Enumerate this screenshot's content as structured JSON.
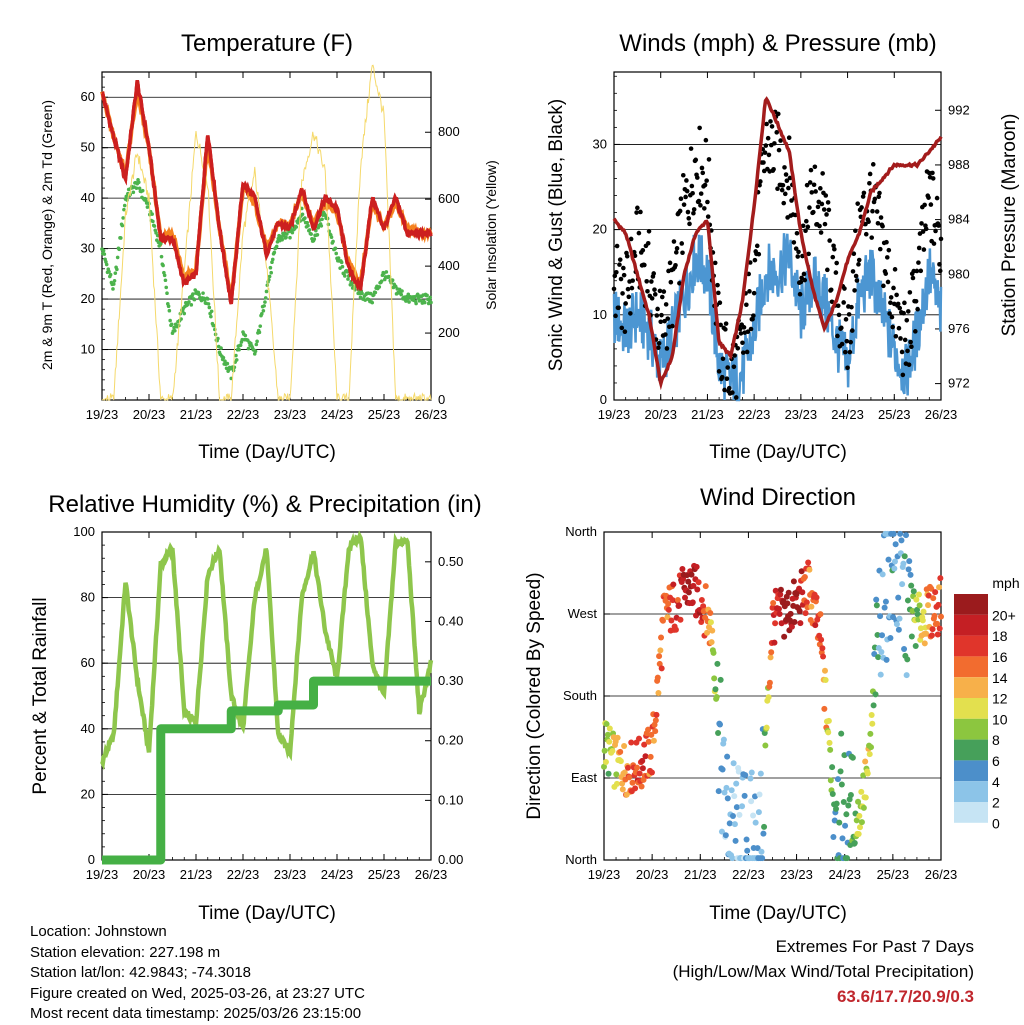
{
  "panels": {
    "temperature": {
      "title": "Temperature (F)",
      "ylabel_left": "2m & 9m T (Red, Orange) & 2m Td (Green)",
      "ylabel_right": "Solar Insolation (Yellow)",
      "xlabel": "Time (Day/UTC)"
    },
    "winds": {
      "title": "Winds (mph) & Pressure (mb)",
      "ylabel_left": "Sonic Wind & Gust (Blue, Black)",
      "ylabel_right": "Station Pressure (Maroon)",
      "xlabel": "Time (Day/UTC)"
    },
    "humidity": {
      "title": "Relative Humidity (%) & Precipitation (in)",
      "ylabel_left": "Percent & Total Rainfall",
      "xlabel": "Time (Day/UTC)"
    },
    "direction": {
      "title": "Wind Direction",
      "ylabel_left": "Direction (Colored By Speed)",
      "xlabel": "Time (Day/UTC)",
      "legend_title": "mph"
    }
  },
  "info": {
    "location": "Location: Johnstown",
    "elevation": "Station elevation: 227.198 m",
    "latlon": "Station lat/lon: 42.9843; -74.3018",
    "created": "Figure created on Wed, 2025-03-26, at 23:27 UTC",
    "recent": "Most recent data timestamp: 2025/03/26 23:15:00"
  },
  "extremes": {
    "heading": "Extremes For Past 7 Days",
    "subheading": "(High/Low/Max Wind/Total Precipitation)",
    "values": "63.6/17.7/20.9/0.3"
  },
  "colors": {
    "temp_2m": "#cc1f1f",
    "temp_9m": "#f5821f",
    "dewpoint": "#4cb34c",
    "insolation": "#f5d96b",
    "wind": "#4c96d2",
    "gust": "#000000",
    "pressure": "#a31c1c",
    "rh": "#8ec64c",
    "precip": "#45b045"
  },
  "chart_data": [
    {
      "type": "line",
      "title": "Temperature (F)",
      "xlabel": "Time (Day/UTC)",
      "ylabel": "2m & 9m T (Red, Orange) & 2m Td (Green)",
      "ylabel_right": "Solar Insolation (Yellow)",
      "x_ticks": [
        "19/23",
        "20/23",
        "21/23",
        "22/23",
        "23/23",
        "24/23",
        "25/23",
        "26/23"
      ],
      "x": [
        0,
        0.25,
        0.5,
        0.75,
        1.0,
        1.25,
        1.5,
        1.75,
        2.0,
        2.25,
        2.5,
        2.75,
        3.0,
        3.25,
        3.5,
        3.75,
        4.0,
        4.25,
        4.5,
        4.75,
        5.0,
        5.25,
        5.5,
        5.75,
        6.0,
        6.25,
        6.5,
        6.75,
        7.0
      ],
      "ylim": [
        0,
        65
      ],
      "ylim_right": [
        0,
        980
      ],
      "yticks": [
        10,
        20,
        30,
        40,
        50,
        60
      ],
      "yticks_right": [
        0,
        200,
        400,
        600,
        800
      ],
      "series": [
        {
          "name": "2m T",
          "color": "#cc1f1f",
          "axis": "left",
          "values": [
            61,
            52,
            44,
            63,
            50,
            32,
            32,
            23,
            25,
            53,
            34,
            19,
            43,
            40,
            29,
            35,
            34,
            42,
            34,
            40,
            38,
            26,
            22,
            40,
            34,
            40,
            33,
            33,
            33
          ]
        },
        {
          "name": "9m T",
          "color": "#f5821f",
          "axis": "left",
          "values": [
            61,
            52,
            45,
            61,
            50,
            32,
            33,
            24,
            26,
            51,
            34,
            20,
            42,
            39,
            30,
            35,
            35,
            41,
            35,
            39,
            37,
            27,
            23,
            39,
            34,
            39,
            34,
            33,
            33
          ]
        },
        {
          "name": "2m Td",
          "color": "#4cb34c",
          "axis": "left",
          "values": [
            30,
            22,
            40,
            43,
            38,
            30,
            13,
            18,
            21,
            20,
            10,
            5,
            13,
            9,
            22,
            32,
            33,
            37,
            32,
            37,
            28,
            24,
            21,
            20,
            25,
            22,
            20,
            20,
            20
          ]
        },
        {
          "name": "Solar Insolation",
          "color": "#f5d96b",
          "axis": "right",
          "values": [
            0,
            0,
            550,
            740,
            600,
            0,
            0,
            380,
            800,
            650,
            0,
            0,
            500,
            680,
            400,
            0,
            0,
            650,
            800,
            680,
            0,
            0,
            700,
            1000,
            850,
            0,
            0,
            0,
            0
          ]
        }
      ]
    },
    {
      "type": "scatter",
      "title": "Winds (mph) & Pressure (mb)",
      "xlabel": "Time (Day/UTC)",
      "ylabel": "Sonic Wind & Gust (Blue, Black)",
      "ylabel_right": "Station Pressure (Maroon)",
      "x_ticks": [
        "19/23",
        "20/23",
        "21/23",
        "22/23",
        "23/23",
        "24/23",
        "25/23",
        "26/23"
      ],
      "x": [
        0,
        0.25,
        0.5,
        0.75,
        1.0,
        1.25,
        1.5,
        1.75,
        2.0,
        2.25,
        2.5,
        2.75,
        3.0,
        3.25,
        3.5,
        3.75,
        4.0,
        4.25,
        4.5,
        4.75,
        5.0,
        5.25,
        5.5,
        5.75,
        6.0,
        6.25,
        6.5,
        6.75,
        7.0
      ],
      "ylim": [
        0,
        38.5
      ],
      "ylim_right": [
        970.8,
        994.8
      ],
      "yticks": [
        0,
        10,
        20,
        30
      ],
      "yticks_right": [
        972,
        976,
        980,
        984,
        988,
        992
      ],
      "series": [
        {
          "name": "Sonic Wind",
          "color": "#4c96d2",
          "axis": "left",
          "values": [
            10,
            8,
            10,
            8,
            4,
            8,
            12,
            17,
            15,
            4,
            2,
            3,
            8,
            15,
            15,
            17,
            10,
            14,
            12,
            7,
            4,
            12,
            15,
            10,
            6,
            3,
            8,
            15,
            10
          ]
        },
        {
          "name": "Gust",
          "color": "#000000",
          "axis": "left",
          "values": [
            14,
            12,
            18,
            15,
            8,
            13,
            22,
            28,
            26,
            7,
            3,
            6,
            15,
            30,
            29,
            26,
            16,
            24,
            22,
            12,
            7,
            20,
            24,
            18,
            11,
            6,
            14,
            24,
            18
          ]
        },
        {
          "name": "Station Pressure",
          "color": "#a31c1c",
          "axis": "right",
          "values": [
            984,
            983,
            980,
            977,
            972,
            974,
            980,
            983,
            984,
            975,
            974,
            978,
            985,
            993,
            991,
            989,
            983,
            979,
            976,
            978,
            981,
            983,
            986,
            987,
            988,
            988,
            988,
            989,
            990
          ]
        }
      ]
    },
    {
      "type": "line",
      "title": "Relative Humidity (%) & Precipitation (in)",
      "xlabel": "Time (Day/UTC)",
      "ylabel": "Percent & Total Rainfall",
      "x_ticks": [
        "19/23",
        "20/23",
        "21/23",
        "22/23",
        "23/23",
        "24/23",
        "25/23",
        "26/23"
      ],
      "x": [
        0,
        0.25,
        0.5,
        0.75,
        1.0,
        1.25,
        1.5,
        1.75,
        2.0,
        2.25,
        2.5,
        2.75,
        3.0,
        3.25,
        3.5,
        3.75,
        4.0,
        4.25,
        4.5,
        4.75,
        5.0,
        5.25,
        5.5,
        5.75,
        6.0,
        6.25,
        6.5,
        6.75,
        7.0
      ],
      "ylim": [
        0,
        100
      ],
      "ylim_right": [
        0,
        0.55
      ],
      "yticks": [
        0,
        20,
        40,
        60,
        80,
        100
      ],
      "yticks_right": [
        0.0,
        0.1,
        0.2,
        0.3,
        0.4,
        0.5
      ],
      "series": [
        {
          "name": "RH",
          "color": "#8ec64c",
          "axis": "left",
          "values": [
            30,
            38,
            85,
            55,
            33,
            90,
            95,
            45,
            42,
            87,
            95,
            50,
            40,
            80,
            95,
            38,
            33,
            80,
            94,
            70,
            55,
            95,
            99,
            60,
            50,
            97,
            97,
            45,
            60
          ]
        },
        {
          "name": "Total Precipitation",
          "color": "#45b045",
          "axis": "right",
          "values": [
            0,
            0,
            0,
            0,
            0,
            0.22,
            0.22,
            0.22,
            0.22,
            0.22,
            0.22,
            0.25,
            0.25,
            0.25,
            0.25,
            0.26,
            0.26,
            0.26,
            0.3,
            0.3,
            0.3,
            0.3,
            0.3,
            0.3,
            0.3,
            0.3,
            0.3,
            0.3,
            0.3
          ]
        }
      ]
    },
    {
      "type": "scatter",
      "title": "Wind Direction",
      "xlabel": "Time (Day/UTC)",
      "ylabel": "Direction (Colored By Speed)",
      "x_ticks": [
        "19/23",
        "20/23",
        "21/23",
        "22/23",
        "23/23",
        "24/23",
        "25/23",
        "26/23"
      ],
      "y_ticks": [
        "North",
        "East",
        "South",
        "West",
        "North"
      ],
      "y_tick_values": [
        0,
        90,
        180,
        270,
        360
      ],
      "x": [
        0,
        0.25,
        0.5,
        0.75,
        1.0,
        1.25,
        1.5,
        1.75,
        2.0,
        2.25,
        2.5,
        2.75,
        3.0,
        3.25,
        3.5,
        3.75,
        4.0,
        4.25,
        4.5,
        4.75,
        5.0,
        5.25,
        5.5,
        5.75,
        6.0,
        6.25,
        6.5,
        6.75,
        7.0
      ],
      "ylim": [
        0,
        360
      ],
      "series": [
        {
          "name": "Direction",
          "values": [
            130,
            105,
            100,
            105,
            120,
            270,
            280,
            300,
            290,
            250,
            60,
            30,
            20,
            20,
            265,
            270,
            280,
            300,
            240,
            80,
            50,
            40,
            100,
            280,
            320,
            280,
            260,
            270,
            280
          ],
          "speed": [
            8,
            10,
            14,
            16,
            14,
            14,
            16,
            20,
            18,
            10,
            2,
            2,
            2,
            2,
            16,
            20,
            20,
            14,
            16,
            6,
            4,
            8,
            10,
            2,
            4,
            4,
            8,
            14,
            14
          ]
        }
      ],
      "legend": {
        "title": "mph",
        "labels": [
          "0",
          "2",
          "4",
          "6",
          "8",
          "10",
          "12",
          "14",
          "16",
          "18",
          "20+"
        ],
        "colors": [
          "#c6e4f4",
          "#8cc4e8",
          "#4c8fca",
          "#46a05a",
          "#8cc63f",
          "#e3e04e",
          "#f7b04a",
          "#f26c2f",
          "#e0352b",
          "#c41f24",
          "#9b1b1d"
        ]
      }
    }
  ]
}
